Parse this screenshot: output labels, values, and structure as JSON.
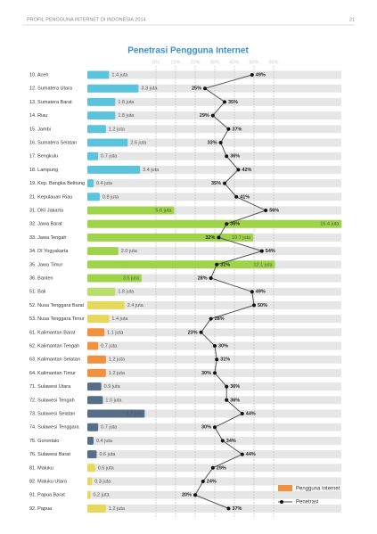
{
  "header": {
    "title": "PROFIL PENGGUNA INTERNET DI INDONESIA 2014",
    "page": "21"
  },
  "chart_data": {
    "type": "bar-line",
    "title": "Penetrasi Pengguna Internet",
    "categories": [
      "10. Aceh",
      "12. Sumatera Utara",
      "13. Sumatera Barat",
      "14. Riau",
      "15. Jambi",
      "16. Sumatera Selatan",
      "17. Bengkulu",
      "18. Lampung",
      "19. Kep. Bangka Belitung",
      "21. Kepulauan Riau",
      "31. DKI Jakarta",
      "32. Jawa Barat",
      "33. Jawa Tengah",
      "34. DI Yogyakarta",
      "35. Jawa Timur",
      "36. Banten",
      "51. Bali",
      "52. Nusa Tenggara Barat",
      "53. Nusa Tenggara Timur",
      "61. Kalimantan Barat",
      "62. Kalimantan Tengah",
      "63. Kalimantan Selatan",
      "64. Kalimantan Timur",
      "71. Sulawesi Utara",
      "72. Sulawesi Tengah",
      "73. Sulawesi Selatan",
      "74. Sulawesi Tenggara",
      "75. Gorontalo",
      "76. Sulawesi Barat",
      "81. Maluku",
      "82. Maluku Utara",
      "91. Papua Barat",
      "92. Papua"
    ],
    "series": [
      {
        "name": "Pengguna Internet",
        "color": "#f0913e",
        "values": [
          1.4,
          3.3,
          1.8,
          1.8,
          1.2,
          2.6,
          0.7,
          3.4,
          0.4,
          0.8,
          5.6,
          16.4,
          10.7,
          2.0,
          12.1,
          3.5,
          1.8,
          2.4,
          1.4,
          1.1,
          0.7,
          1.2,
          1.2,
          0.9,
          1.0,
          3.7,
          0.7,
          0.4,
          0.6,
          0.5,
          0.3,
          0.2,
          1.2
        ],
        "value_labels": [
          "1.4 juta",
          "3.3 juta",
          "1.8 juta",
          "1.8 juta",
          "1.2 juta",
          "2.6 juta",
          "0.7 juta",
          "3.4 juta",
          "0.4 juta",
          "0.8 juta",
          "5.6 juta",
          "16.4 juta",
          "10.7 juta",
          "2.0 juta",
          "12.1 juta",
          "3.5 juta",
          "1.8 juta",
          "2.4 juta",
          "1.4 juta",
          "1.1 juta",
          "0.7 juta",
          "1.2 juta",
          "1.2 juta",
          "0.9 juta",
          "1.0 juta",
          "3.7 juta",
          "0.7 juta",
          "0.4 juta",
          "0.6 juta",
          "0.5 juta",
          "0.3 juta",
          "0.2 juta",
          "1.2 juta"
        ],
        "bar_colors": [
          "#5bc4dc",
          "#5bc4dc",
          "#5bc4dc",
          "#5bc4dc",
          "#5bc4dc",
          "#5bc4dc",
          "#5bc4dc",
          "#5bc4dc",
          "#5bc4dc",
          "#5bc4dc",
          "#9fd44a",
          "#9fd44a",
          "#9fd44a",
          "#9fd44a",
          "#9fd44a",
          "#9fd44a",
          "#b9df6a",
          "#e6d85a",
          "#e6d85a",
          "#f0913e",
          "#f0913e",
          "#f0913e",
          "#f0913e",
          "#566e88",
          "#566e88",
          "#566e88",
          "#566e88",
          "#566e88",
          "#566e88",
          "#e6d85a",
          "#e6d85a",
          "#e6d85a",
          "#e6d85a"
        ]
      },
      {
        "name": "Penetrasi",
        "color": "#555555",
        "values": [
          49,
          25,
          35,
          29,
          37,
          33,
          36,
          42,
          35,
          41,
          56,
          36,
          32,
          54,
          31,
          28,
          49,
          50,
          28,
          23,
          30,
          31,
          30,
          36,
          36,
          44,
          30,
          34,
          44,
          29,
          24,
          20,
          37
        ],
        "value_labels": [
          "49%",
          "25%",
          "35%",
          "29%",
          "37%",
          "33%",
          "36%",
          "42%",
          "35%",
          "41%",
          "56%",
          "36%",
          "32%",
          "54%",
          "31%",
          "28%",
          "49%",
          "50%",
          "28%",
          "23%",
          "30%",
          "31%",
          "30%",
          "36%",
          "36%",
          "44%",
          "30%",
          "34%",
          "44%",
          "29%",
          "24%",
          "20%",
          "37%"
        ]
      }
    ],
    "xlim": [
      0,
      60
    ],
    "xticks": [
      {
        "value": 0,
        "label": "0%"
      },
      {
        "value": 10,
        "label": "10%"
      },
      {
        "value": 20,
        "label": "20%"
      },
      {
        "value": 30,
        "label": "30%"
      },
      {
        "value": 40,
        "label": "40%"
      },
      {
        "value": 50,
        "label": "50%"
      },
      {
        "value": 60,
        "label": "60%"
      }
    ],
    "grid": true
  }
}
